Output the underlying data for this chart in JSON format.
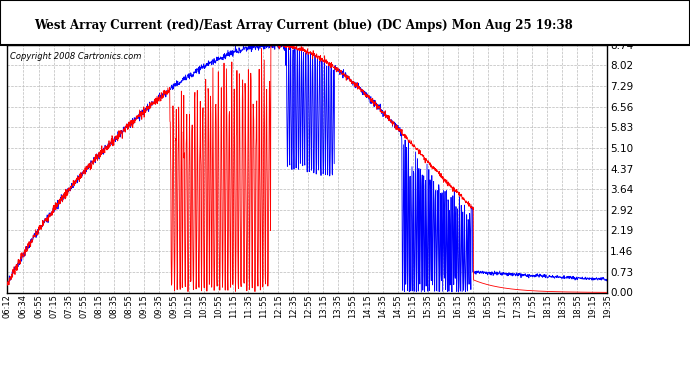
{
  "title": "West Array Current (red)/East Array Current (blue) (DC Amps) Mon Aug 25 19:38",
  "copyright": "Copyright 2008 Cartronics.com",
  "yticks": [
    0.0,
    0.73,
    1.46,
    2.19,
    2.92,
    3.64,
    4.37,
    5.1,
    5.83,
    6.56,
    7.29,
    8.02,
    8.74
  ],
  "ymin": 0.0,
  "ymax": 8.74,
  "xtick_labels": [
    "06:12",
    "06:34",
    "06:55",
    "07:15",
    "07:35",
    "07:55",
    "08:15",
    "08:35",
    "08:55",
    "09:15",
    "09:35",
    "09:55",
    "10:15",
    "10:35",
    "10:55",
    "11:15",
    "11:35",
    "11:55",
    "12:15",
    "12:35",
    "12:55",
    "13:15",
    "13:35",
    "13:55",
    "14:15",
    "14:35",
    "14:55",
    "15:15",
    "15:35",
    "15:55",
    "16:15",
    "16:35",
    "16:55",
    "17:15",
    "17:35",
    "17:55",
    "18:15",
    "18:35",
    "18:55",
    "19:15",
    "19:35"
  ],
  "bg_color": "#ffffff",
  "plot_bg_color": "#ffffff",
  "grid_color": "#bbbbbb",
  "red_color": "#ff0000",
  "blue_color": "#0000ff",
  "border_color": "#000000"
}
